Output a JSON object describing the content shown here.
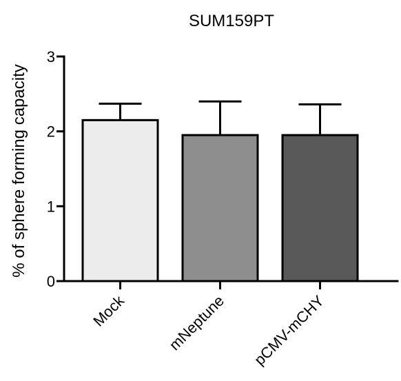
{
  "chart_data": {
    "type": "bar",
    "title": "SUM159PT",
    "ylabel": "% of sphere forming capacity",
    "xlabel": "",
    "categories": [
      "Mock",
      "mNeptune",
      "pCMV-mCHY"
    ],
    "values": [
      2.15,
      1.95,
      1.95
    ],
    "errors": [
      0.22,
      0.45,
      0.41
    ],
    "ylim": [
      0,
      3
    ],
    "yticks": [
      "0",
      "1",
      "2",
      "3"
    ],
    "colors": [
      "#ececec",
      "#8e8e8e",
      "#595959"
    ],
    "grid": false,
    "legend": "none"
  }
}
